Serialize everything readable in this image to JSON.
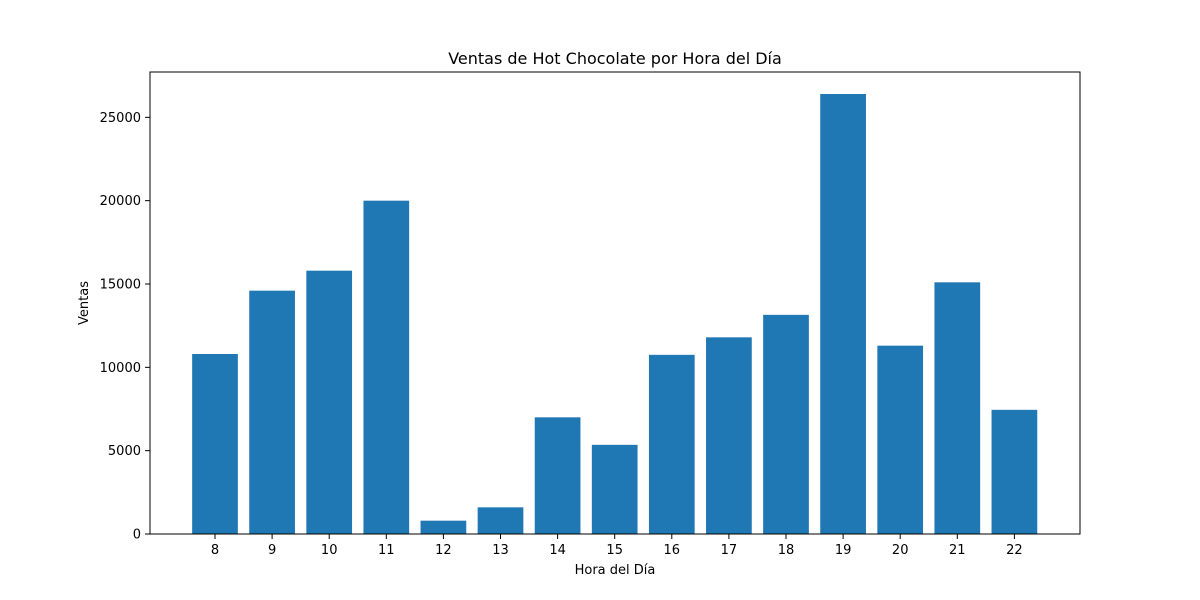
{
  "chart_data": {
    "type": "bar",
    "title": "Ventas de Hot Chocolate por Hora del Día",
    "xlabel": "Hora del Día",
    "ylabel": "Ventas",
    "categories": [
      "8",
      "9",
      "10",
      "11",
      "12",
      "13",
      "14",
      "15",
      "16",
      "17",
      "18",
      "19",
      "20",
      "21",
      "22"
    ],
    "values": [
      10800,
      14600,
      15800,
      20000,
      800,
      1600,
      7000,
      5350,
      10750,
      11800,
      13150,
      26400,
      11300,
      15100,
      7450
    ],
    "yticks": [
      0,
      5000,
      10000,
      15000,
      20000,
      25000
    ],
    "ylim": [
      0,
      27720
    ],
    "bar_color": "#1f77b4",
    "grid": false
  }
}
